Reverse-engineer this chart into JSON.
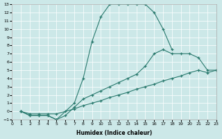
{
  "xlabel": "Humidex (Indice chaleur)",
  "xlim": [
    0,
    23
  ],
  "ylim": [
    -1,
    13
  ],
  "xticks": [
    0,
    1,
    2,
    3,
    4,
    5,
    6,
    7,
    8,
    9,
    10,
    11,
    12,
    13,
    14,
    15,
    16,
    17,
    18,
    19,
    20,
    21,
    22,
    23
  ],
  "yticks": [
    -1,
    0,
    1,
    2,
    3,
    4,
    5,
    6,
    7,
    8,
    9,
    10,
    11,
    12,
    13
  ],
  "bg_color": "#cce8e8",
  "line_color": "#2a7a6e",
  "curves": [
    {
      "x": [
        1,
        2,
        3,
        4,
        5,
        7,
        8,
        9,
        10,
        11,
        12,
        13,
        14,
        15,
        16,
        17,
        18
      ],
      "y": [
        0,
        -0.5,
        -0.5,
        -0.5,
        -1.0,
        1.0,
        4.0,
        8.5,
        11.5,
        13.0,
        13.0,
        13.0,
        13.0,
        13.0,
        12.0,
        10.0,
        7.5
      ]
    },
    {
      "x": [
        1,
        2,
        3,
        4,
        5,
        6,
        7,
        8,
        9,
        10,
        11,
        12,
        13,
        14,
        15,
        16,
        17,
        18,
        19,
        20,
        21,
        22,
        23
      ],
      "y": [
        0,
        -0.5,
        -0.5,
        -0.5,
        -1.0,
        -0.5,
        0.5,
        1.5,
        2.0,
        2.5,
        3.0,
        3.5,
        4.0,
        4.5,
        5.5,
        7.0,
        7.5,
        7.0,
        7.0,
        7.0,
        6.5,
        5.0,
        5.0
      ]
    },
    {
      "x": [
        1,
        2,
        3,
        4,
        5,
        6,
        7,
        8,
        9,
        10,
        11,
        12,
        13,
        14,
        15,
        16,
        17,
        18,
        19,
        20,
        21,
        22,
        23
      ],
      "y": [
        0,
        -0.3,
        -0.3,
        -0.3,
        -0.3,
        0.0,
        0.3,
        0.7,
        1.0,
        1.3,
        1.7,
        2.0,
        2.3,
        2.7,
        3.0,
        3.3,
        3.7,
        4.0,
        4.3,
        4.7,
        5.0,
        4.7,
        5.0
      ]
    }
  ]
}
